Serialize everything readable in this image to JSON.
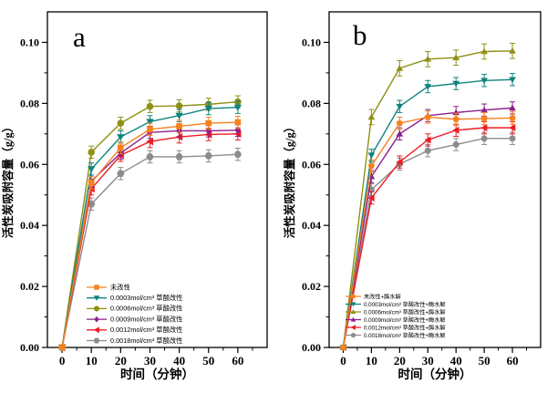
{
  "figure": {
    "background": "#ffffff",
    "axis_color": "#000000",
    "text_color": "#000000"
  },
  "chart_data": [
    {
      "type": "line",
      "panel_label": "a",
      "xlabel": "时间（分钟）",
      "ylabel": "活性炭吸附容量（g/g）",
      "x": [
        0,
        10,
        20,
        30,
        40,
        50,
        60
      ],
      "x_tick_labels": [
        "0",
        "10",
        "20",
        "30",
        "40",
        "50",
        "60"
      ],
      "y_ticks": [
        0,
        0.02,
        0.04,
        0.06,
        0.08,
        0.1
      ],
      "y_tick_labels": [
        "0.00",
        "0.02",
        "0.04",
        "0.06",
        "0.08",
        "0.10"
      ],
      "x_minor_ticks": [
        5,
        15,
        25,
        35,
        45,
        55,
        65
      ],
      "y_minor_ticks": [
        0.01,
        0.03,
        0.05,
        0.07,
        0.09
      ],
      "xlim": [
        -5,
        70
      ],
      "ylim": [
        0,
        0.11
      ],
      "grid": false,
      "legend_position": "lower-left-inside",
      "series": [
        {
          "name": "未改性",
          "color": "#F5821F",
          "marker": "square",
          "error": 0.002,
          "values": [
            0,
            0.054,
            0.0655,
            0.0715,
            0.0725,
            0.0735,
            0.0738
          ]
        },
        {
          "name": "0.0003mol/cm³ 草酸改性",
          "color": "#0F837D",
          "marker": "triangle-down",
          "error": 0.002,
          "values": [
            0,
            0.0585,
            0.069,
            0.074,
            0.076,
            0.0783,
            0.0787
          ]
        },
        {
          "name": "0.0006mol/cm³ 草酸改性",
          "color": "#8F9015",
          "marker": "circle",
          "error": 0.002,
          "values": [
            0,
            0.064,
            0.0735,
            0.079,
            0.0792,
            0.0797,
            0.0805
          ]
        },
        {
          "name": "0.0009mol/cm³ 草酸改性",
          "color": "#8E1F8C",
          "marker": "diamond",
          "error": 0.002,
          "values": [
            0,
            0.0545,
            0.0637,
            0.0705,
            0.071,
            0.071,
            0.0712
          ]
        },
        {
          "name": "0.0012mol/cm³ 草酸改性",
          "color": "#EC1C24",
          "marker": "triangle-left",
          "error": 0.002,
          "values": [
            0,
            0.052,
            0.063,
            0.0675,
            0.069,
            0.0698,
            0.07
          ]
        },
        {
          "name": "0.0018mol/cm³ 草酸改性",
          "color": "#8C8C8C",
          "marker": "hexagon",
          "error": 0.002,
          "values": [
            0,
            0.047,
            0.057,
            0.0625,
            0.0625,
            0.0628,
            0.0633
          ]
        }
      ]
    },
    {
      "type": "line",
      "panel_label": "b",
      "xlabel": "时间（分钟）",
      "ylabel": "活性炭吸附容量（g/g）",
      "x": [
        0,
        10,
        20,
        30,
        40,
        50,
        60
      ],
      "x_tick_labels": [
        "0",
        "10",
        "20",
        "30",
        "40",
        "50",
        "60"
      ],
      "y_ticks": [
        0,
        0.02,
        0.04,
        0.06,
        0.08,
        0.1
      ],
      "y_tick_labels": [
        "0.00",
        "0.02",
        "0.04",
        "0.06",
        "0.08",
        "0.10"
      ],
      "x_minor_ticks": [
        5,
        15,
        25,
        35,
        45,
        55,
        65
      ],
      "y_minor_ticks": [
        0.01,
        0.03,
        0.05,
        0.07,
        0.09
      ],
      "xlim": [
        -5,
        70
      ],
      "ylim": [
        0,
        0.11
      ],
      "grid": false,
      "legend_position": "lower-left-inside",
      "series": [
        {
          "name": "未改性+酶水解",
          "color": "#F5821F",
          "marker": "pentagon",
          "error": 0.002,
          "values": [
            0,
            0.0595,
            0.0735,
            0.0755,
            0.0748,
            0.075,
            0.0752
          ]
        },
        {
          "name": "0.0003mol/cm³ 草酸改性+酶水解",
          "color": "#0F837D",
          "marker": "triangle-down",
          "error": 0.002,
          "values": [
            0,
            0.063,
            0.079,
            0.0855,
            0.0865,
            0.0875,
            0.0878
          ]
        },
        {
          "name": "0.0006mol/cm³ 草酸改性+酶水解",
          "color": "#8F9015",
          "marker": "triangle-up",
          "error": 0.0025,
          "values": [
            0,
            0.0755,
            0.0915,
            0.0945,
            0.095,
            0.097,
            0.0972
          ]
        },
        {
          "name": "0.0009mol/cm³ 草酸改性+酶水解",
          "color": "#8E1F8C",
          "marker": "triangle-up",
          "error": 0.002,
          "values": [
            0,
            0.056,
            0.07,
            0.076,
            0.077,
            0.0778,
            0.0785
          ]
        },
        {
          "name": "0.0012mol/cm³ 草酸改性+酶水解",
          "color": "#EC1C24",
          "marker": "triangle-left",
          "error": 0.002,
          "values": [
            0,
            0.049,
            0.0608,
            0.068,
            0.0712,
            0.072,
            0.072
          ]
        },
        {
          "name": "0.0018mol/cm³ 草酸改性+酶水解",
          "color": "#8C8C8C",
          "marker": "circle",
          "error": 0.002,
          "values": [
            0,
            0.0517,
            0.0601,
            0.0645,
            0.0665,
            0.0685,
            0.0685
          ]
        }
      ]
    }
  ]
}
